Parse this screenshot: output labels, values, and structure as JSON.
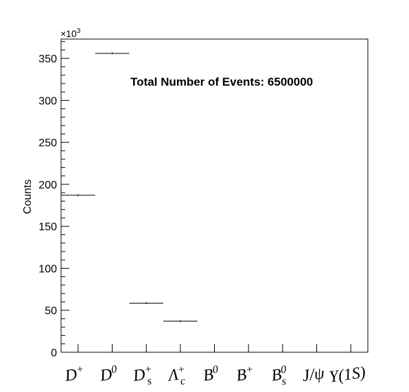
{
  "chart_data": {
    "type": "bar",
    "title": "",
    "xlabel": "",
    "ylabel": "Counts",
    "y_multiplier": "×10",
    "y_multiplier_exp": "3",
    "ylim": [
      0,
      373
    ],
    "y_ticks": [
      0,
      50,
      100,
      150,
      200,
      250,
      300,
      350
    ],
    "annotation": "Total Number of Events: 6500000",
    "grid": false,
    "categories": [
      {
        "base": "D",
        "sup": "+",
        "sub": ""
      },
      {
        "base": "D",
        "sup": "0",
        "sub": ""
      },
      {
        "base": "D",
        "sup": "+",
        "sub": "s"
      },
      {
        "base": "Λ",
        "sup": "+",
        "sub": "c"
      },
      {
        "base": "B",
        "sup": "0",
        "sub": ""
      },
      {
        "base": "B",
        "sup": "+",
        "sub": ""
      },
      {
        "base": "B",
        "sup": "0",
        "sub": "s"
      },
      {
        "base": "J/ψ",
        "sup": "",
        "sub": ""
      },
      {
        "base": "Υ(1S)",
        "sup": "",
        "sub": ""
      }
    ],
    "values": [
      187,
      356,
      58.5,
      37,
      0,
      0,
      0,
      0,
      0
    ]
  }
}
